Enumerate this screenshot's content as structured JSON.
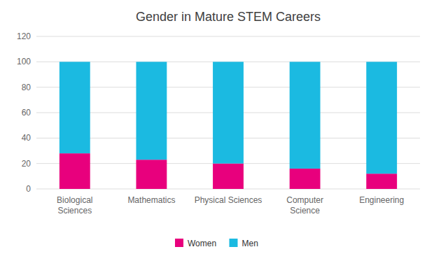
{
  "chart_data": {
    "type": "bar",
    "title": "Gender in Mature STEM Careers",
    "categories": [
      "Biological\nSciences",
      "Mathematics",
      "Physical Sciences",
      "Computer\nScience",
      "Engineering"
    ],
    "series": [
      {
        "name": "Women",
        "color": "#E8007D",
        "values": [
          28,
          23,
          20,
          16,
          12
        ]
      },
      {
        "name": "Men",
        "color": "#1BBAE1",
        "values": [
          72,
          77,
          80,
          84,
          88
        ]
      }
    ],
    "stacked": true,
    "ylim": [
      0,
      120
    ],
    "yticks": [
      0,
      20,
      40,
      60,
      80,
      100,
      120
    ],
    "grid": true,
    "legend": "bottom"
  }
}
